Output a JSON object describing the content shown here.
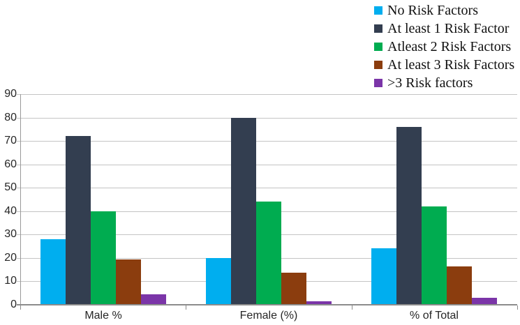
{
  "chart_data": {
    "type": "bar",
    "title": "",
    "xlabel": "",
    "ylabel": "",
    "categories": [
      "Male %",
      "Female (%)",
      "% of Total"
    ],
    "series": [
      {
        "name": "No Risk Factors",
        "color": "#00AEEF",
        "values": [
          28,
          20,
          24
        ]
      },
      {
        "name": "At least 1 Risk Factor",
        "color": "#333E50",
        "values": [
          72,
          80,
          76
        ]
      },
      {
        "name": "Atleast 2 Risk Factors",
        "color": "#00AC50",
        "values": [
          40,
          44,
          42
        ]
      },
      {
        "name": "At least 3 Risk Factors",
        "color": "#8B3D0E",
        "values": [
          19.3,
          13.8,
          16.5
        ]
      },
      {
        "name": ">3 Risk factors",
        "color": "#7B35A8",
        "values": [
          4.5,
          1.5,
          3
        ]
      }
    ],
    "ylim": [
      0,
      90
    ],
    "ytick_step": 10,
    "y_tick_labels": [
      "0",
      "10",
      "20",
      "30",
      "40",
      "50",
      "60",
      "70",
      "80",
      "90"
    ],
    "grid": "horizontal",
    "legend_position": "top-right"
  },
  "style_colors": {
    "gridline": "#C4C4C4",
    "axis_line": "#8C8C8C",
    "tick_text": "#262626",
    "legend_text": "#111111"
  }
}
